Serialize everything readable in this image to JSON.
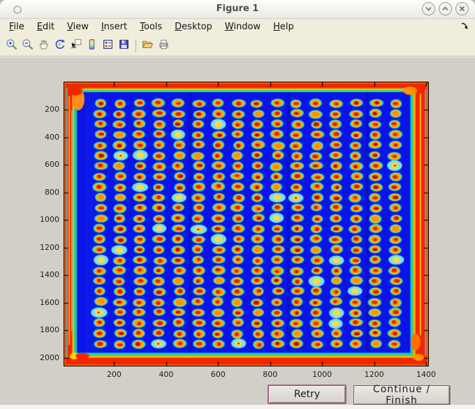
{
  "window": {
    "title": "Figure 1",
    "controls": {
      "minimize": "minimize",
      "maximize": "maximize",
      "close": "close"
    }
  },
  "menu": {
    "items": [
      "File",
      "Edit",
      "View",
      "Insert",
      "Tools",
      "Desktop",
      "Window",
      "Help"
    ]
  },
  "toolbar": {
    "icons": [
      "zoom-in",
      "zoom-out",
      "pan",
      "rotate-3d",
      "data-cursor",
      "insert-colorbar",
      "insert-legend",
      "save-figure",
      "separator",
      "open-file",
      "print-figure"
    ]
  },
  "buttons": {
    "retry": "Retry",
    "continue": "Continue / Finish"
  },
  "colors": {
    "chrome_beige": "#f0eddd",
    "figure_background": "#d2cfc8",
    "retry_focus_border": "#a2607e"
  },
  "chart_data": {
    "type": "heatmap",
    "title": "",
    "xlabel": "",
    "ylabel": "",
    "description": "Jet-colormap scan of a spotted micro-array plate: 16 x 24 grid of red/orange spots with cyan halos on a deep blue background, red saturated border at the plate edges",
    "x_range": [
      8,
      1408
    ],
    "y_range": [
      0,
      2056
    ],
    "x_ticks": [
      200,
      400,
      600,
      800,
      1000,
      1200,
      1400
    ],
    "y_ticks": [
      200,
      400,
      600,
      800,
      1000,
      1200,
      1400,
      1600,
      1800,
      2000
    ],
    "grid": {
      "cols": 16,
      "rows": 24,
      "x_start": 146,
      "x_step": 75.7,
      "y_start": 152,
      "y_step": 75.9
    },
    "colormap": "jet",
    "colors": {
      "background": "#0a14e6",
      "halo": "#2fd6cc",
      "halo_pale": "#7deee4",
      "ring_outer": "#ffc400",
      "ring_inner": "#ff9100",
      "core": "#d62200",
      "core_dark": "#b31200",
      "border_edge": "#ff5f00",
      "border_red": "#f32500",
      "border_orange": "#ff8c00",
      "border_yellow": "#ffe400",
      "border_green": "#35e23c",
      "border_cyan": "#17cfd8"
    }
  }
}
